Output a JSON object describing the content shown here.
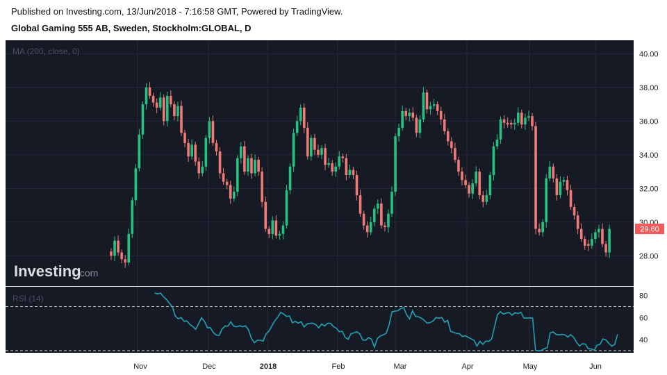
{
  "header": {
    "published": "Published on Investing.com, 13/Jun/2018 - 7:16:58 GMT, Powered by TradingView.",
    "symbol": "Global Gaming 555 AB, Sweden, Stockholm:GLOBAL, D"
  },
  "price_pane": {
    "indicator_label": "MA (200, close, 0)",
    "last_price_label": "29.60",
    "watermark_main": "Investing",
    "watermark_suffix": ".com"
  },
  "rsi_pane": {
    "indicator_label": "RSI (14)"
  },
  "colors": {
    "background": "#161a25",
    "up": "#26c281",
    "down": "#f07a76",
    "rsi_line": "#21a3b5",
    "grid": "#242938",
    "last_price_box": "#ef5b5b"
  },
  "chart_data": [
    {
      "type": "candlestick",
      "ylim": [
        26.2,
        40.8
      ],
      "yticks": [
        28,
        30,
        32,
        34,
        36,
        38,
        40
      ],
      "ytick_labels": [
        "28.00",
        "30.00",
        "32.00",
        "34.00",
        "36.00",
        "38.00",
        "40.00"
      ],
      "x_labels": [
        "Nov",
        "Dec",
        "2018",
        "Feb",
        "Mar",
        "Apr",
        "May",
        "Jun"
      ],
      "last_price": 29.6,
      "close": [
        28.0,
        28.9,
        28.2,
        27.8,
        27.6,
        29.3,
        31.3,
        33.2,
        35.2,
        37.0,
        38.0,
        37.5,
        37.1,
        36.8,
        37.4,
        36.0,
        37.5,
        37.0,
        36.3,
        36.9,
        35.3,
        34.7,
        33.9,
        34.6,
        33.6,
        32.9,
        33.3,
        35.0,
        36.0,
        34.7,
        34.2,
        32.9,
        32.4,
        32.2,
        31.4,
        31.8,
        33.8,
        34.5,
        33.0,
        33.8,
        32.9,
        33.7,
        33.0,
        31.2,
        29.6,
        29.3,
        30.1,
        29.2,
        29.3,
        29.8,
        31.9,
        33.3,
        35.3,
        36.0,
        36.8,
        35.6,
        33.9,
        35.0,
        34.3,
        34.0,
        34.4,
        33.4,
        33.5,
        33.0,
        33.3,
        33.9,
        33.8,
        32.8,
        33.1,
        32.8,
        31.6,
        30.5,
        29.8,
        29.4,
        30.0,
        30.8,
        31.1,
        29.8,
        29.7,
        30.5,
        31.8,
        35.1,
        35.6,
        36.6,
        36.3,
        36.5,
        36.2,
        35.3,
        36.1,
        37.7,
        36.7,
        36.9,
        37.0,
        36.6,
        36.1,
        35.4,
        34.8,
        34.4,
        33.7,
        33.0,
        32.5,
        32.2,
        31.7,
        32.3,
        33.0,
        31.6,
        31.2,
        31.6,
        32.8,
        34.5,
        34.9,
        36.1,
        35.9,
        35.8,
        35.8,
        35.9,
        36.5,
        35.8,
        36.2,
        36.3,
        35.7,
        29.6,
        29.4,
        30.0,
        32.6,
        33.3,
        32.6,
        31.6,
        32.4,
        32.5,
        31.9,
        30.9,
        30.4,
        29.6,
        29.0,
        28.6,
        28.6,
        29.0,
        29.4,
        29.6,
        28.7,
        28.2,
        29.6
      ]
    },
    {
      "type": "line",
      "name": "RSI (14)",
      "ylim": [
        28,
        88
      ],
      "yticks": [
        40,
        60,
        80
      ],
      "ytick_labels": [
        "40",
        "60",
        "80"
      ],
      "levels": [
        30,
        70
      ],
      "values": [
        82.3,
        81.5,
        82.3,
        79.0,
        76.5,
        73.1,
        69.9,
        61.6,
        58.9,
        60.0,
        56.6,
        56.9,
        53.8,
        51.9,
        49.3,
        54.6,
        59.8,
        56.4,
        50.8,
        50.8,
        46.4,
        44.1,
        43.8,
        49.7,
        52.3,
        52.2,
        56.1,
        52.1,
        51.6,
        52.6,
        51.7,
        52.5,
        49.0,
        41.3,
        37.1,
        39.4,
        39.4,
        38.7,
        45.1,
        47.7,
        52.6,
        57.2,
        60.4,
        64.8,
        63.2,
        61.1,
        61.4,
        55.3,
        56.6,
        54.9,
        56.3,
        51.5,
        54.3,
        54.7,
        54.9,
        53.6,
        50.7,
        54.2,
        52.3,
        54.8,
        54.8,
        51.9,
        50.3,
        47.2,
        47.5,
        42.1,
        40.2,
        45.3,
        46.1,
        47.1,
        45.2,
        39.6,
        39.4,
        41.8,
        40.4,
        33.0,
        41.0,
        43.3,
        44.3,
        45.6,
        53.3,
        65.2,
        65.9,
        66.2,
        68.3,
        69.1,
        62.4,
        58.8,
        66.1,
        61.2,
        60.8,
        59.5,
        57.5,
        54.9,
        55.5,
        56.8,
        60.1,
        59.4,
        60.1,
        55.7,
        57.4,
        47.5,
        46.6,
        45.6,
        45.3,
        42.8,
        43.5,
        42.1,
        40.7,
        39.3,
        34.2,
        38.5,
        35.7,
        38.6,
        38.3,
        40.5,
        51.7,
        62.6,
        65.3,
        63.2,
        64.2,
        64.6,
        62.2,
        64.6,
        63.7,
        64.8,
        59.5,
        59.5,
        59.7,
        59.5,
        30.2,
        29.7,
        30.2,
        31.8,
        32.6,
        46.1,
        47.0,
        44.7,
        44.3,
        44.7,
        44.3,
        42.3,
        44.5,
        42.1,
        37.4,
        34.2,
        36.2,
        35.8,
        31.7,
        31.5,
        30.3,
        34.9,
        35.6,
        40.6,
        39.8,
        36.6,
        34.0,
        35.5,
        44.8
      ]
    }
  ]
}
